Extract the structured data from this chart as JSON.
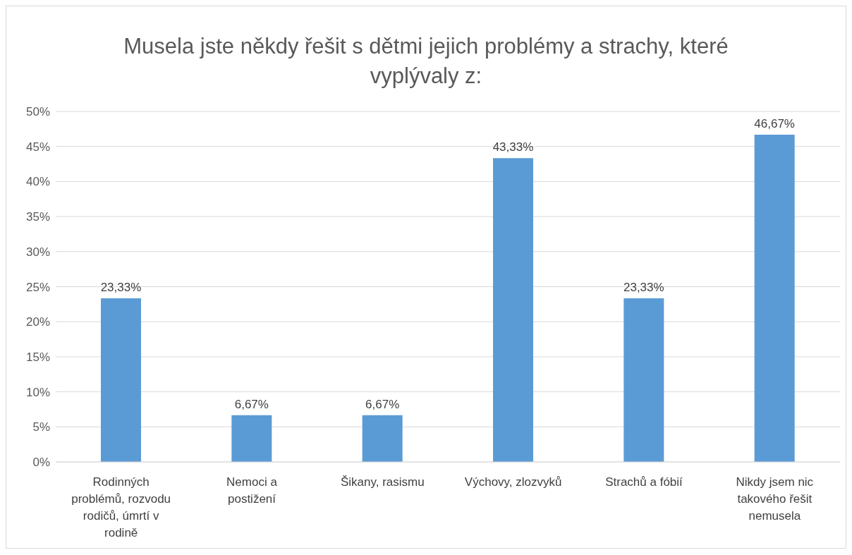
{
  "chart_data": {
    "type": "bar",
    "title": "Musela jste někdy řešit s dětmi jejich problémy a strachy, které vyplývaly z:",
    "categories": [
      "Rodinných problémů, rozvodu rodičů, úmrtí v rodině",
      "Nemoci a postižení",
      "Šikany, rasismu",
      "Výchovy, zlozvyků",
      "Strachů a fóbií",
      "Nikdy jsem nic takového řešit nemusela"
    ],
    "values": [
      23.33,
      6.67,
      6.67,
      43.33,
      23.33,
      46.67
    ],
    "value_labels": [
      "23,33%",
      "6,67%",
      "6,67%",
      "43,33%",
      "23,33%",
      "46,67%"
    ],
    "color": "#5b9bd5",
    "ylim": [
      0,
      50
    ],
    "yticks": [
      {
        "value": 0,
        "label": "0%"
      },
      {
        "value": 5,
        "label": "5%"
      },
      {
        "value": 10,
        "label": "10%"
      },
      {
        "value": 15,
        "label": "15%"
      },
      {
        "value": 20,
        "label": "20%"
      },
      {
        "value": 25,
        "label": "25%"
      },
      {
        "value": 30,
        "label": "30%"
      },
      {
        "value": 35,
        "label": "35%"
      },
      {
        "value": 40,
        "label": "40%"
      },
      {
        "value": 45,
        "label": "45%"
      },
      {
        "value": 50,
        "label": "50%"
      }
    ],
    "grid": "y"
  }
}
